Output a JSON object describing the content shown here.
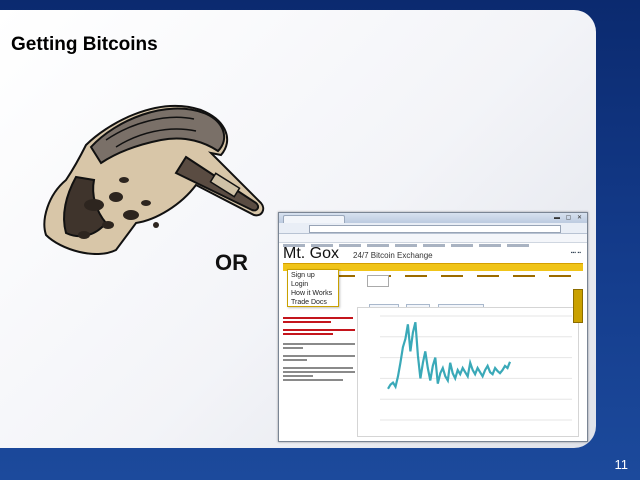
{
  "slide": {
    "title": "Getting Bitcoins",
    "or_label": "OR",
    "page_number": "11"
  },
  "browser": {
    "logo": "Mt. Gox",
    "tagline": "24/7 Bitcoin Exchange",
    "dropdown_items": [
      "Sign up",
      "Login",
      "How it Works",
      "Trade Docs"
    ],
    "colors": {
      "menu_bar": "#f0c419",
      "chart_line": "#3aa9b8",
      "side_text_red": "#c4151c"
    }
  },
  "chart_data": {
    "type": "line",
    "series": [
      {
        "values": [
          0.3,
          0.34,
          0.36,
          0.32,
          0.42,
          0.55,
          0.7,
          0.78,
          0.92,
          0.66,
          0.84,
          0.94,
          0.62,
          0.4,
          0.55,
          0.66,
          0.5,
          0.38,
          0.52,
          0.6,
          0.35,
          0.45,
          0.5,
          0.42,
          0.38,
          0.55,
          0.45,
          0.4,
          0.48,
          0.44,
          0.5,
          0.46,
          0.42,
          0.55,
          0.48,
          0.44,
          0.5,
          0.46,
          0.42,
          0.48,
          0.52,
          0.46,
          0.44,
          0.5,
          0.47,
          0.45,
          0.48,
          0.52,
          0.5,
          0.56
        ]
      }
    ]
  }
}
